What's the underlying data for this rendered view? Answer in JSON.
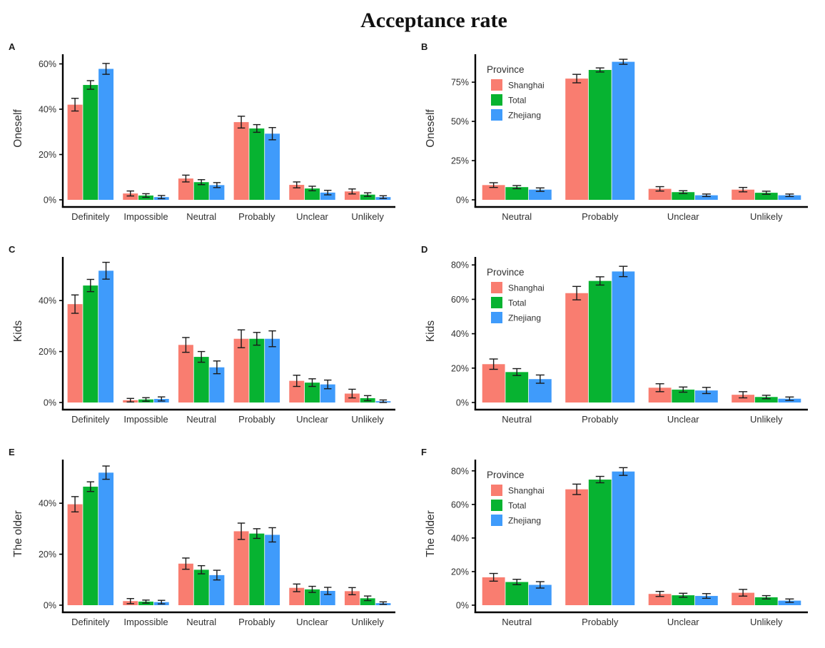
{
  "title": "Acceptance rate",
  "legend": {
    "title": "Province",
    "entries": [
      {
        "label": "Shanghai",
        "color": "#F97D70"
      },
      {
        "label": "Total",
        "color": "#07B331"
      },
      {
        "label": "Zhejiang",
        "color": "#3F9BFB"
      }
    ]
  },
  "axis_style": {
    "line_color": "#000000",
    "text_color": "#303030",
    "errorbar_color": "#1a1a1a"
  },
  "chart_data": [
    {
      "panel": "A",
      "type": "bar",
      "ylabel": "Oneself",
      "categories": [
        "Definitely",
        "Impossible",
        "Neutral",
        "Probably",
        "Unclear",
        "Unlikely"
      ],
      "ymax": 63,
      "yticks": [
        0,
        20,
        40,
        60
      ],
      "ytick_suffix": "%",
      "grid": false,
      "show_legend": false,
      "series": [
        {
          "name": "Shanghai",
          "values": [
            42.0,
            2.8,
            9.4,
            34.3,
            6.6,
            3.7
          ],
          "errors": [
            2.8,
            1.1,
            1.5,
            2.6,
            1.3,
            1.1
          ]
        },
        {
          "name": "Total",
          "values": [
            50.7,
            1.9,
            7.8,
            31.5,
            5.0,
            2.3
          ],
          "errors": [
            1.9,
            0.8,
            1.1,
            1.7,
            1.0,
            0.8
          ]
        },
        {
          "name": "Zhejiang",
          "values": [
            57.8,
            1.2,
            6.5,
            29.2,
            3.2,
            1.2
          ],
          "errors": [
            2.4,
            0.7,
            1.1,
            2.7,
            1.0,
            0.6
          ]
        }
      ]
    },
    {
      "panel": "B",
      "type": "bar",
      "ylabel": "Oneself",
      "categories": [
        "Neutral",
        "Probably",
        "Unclear",
        "Unlikely"
      ],
      "ymax": 91,
      "yticks": [
        0,
        25,
        50,
        75
      ],
      "ytick_suffix": "%",
      "grid": false,
      "show_legend": true,
      "series": [
        {
          "name": "Shanghai",
          "values": [
            9.4,
            77.3,
            7.0,
            6.5
          ],
          "errors": [
            1.5,
            2.7,
            1.4,
            1.4
          ]
        },
        {
          "name": "Total",
          "values": [
            8.1,
            82.8,
            4.9,
            4.5
          ],
          "errors": [
            1.0,
            1.3,
            0.9,
            1.0
          ]
        },
        {
          "name": "Zhejiang",
          "values": [
            6.5,
            88.0,
            2.9,
            2.9
          ],
          "errors": [
            1.1,
            1.6,
            0.8,
            0.8
          ]
        }
      ]
    },
    {
      "panel": "C",
      "type": "bar",
      "ylabel": "Kids",
      "categories": [
        "Definitely",
        "Impossible",
        "Neutral",
        "Probably",
        "Unclear",
        "Unlikely"
      ],
      "ymax": 56,
      "yticks": [
        0,
        20,
        40
      ],
      "ytick_suffix": "%",
      "grid": false,
      "show_legend": false,
      "series": [
        {
          "name": "Shanghai",
          "values": [
            38.6,
            0.9,
            22.6,
            25.0,
            8.5,
            3.5
          ],
          "errors": [
            3.6,
            0.7,
            2.9,
            3.5,
            2.2,
            1.7
          ]
        },
        {
          "name": "Total",
          "values": [
            45.9,
            1.2,
            17.9,
            25.0,
            7.8,
            1.7
          ],
          "errors": [
            2.4,
            0.7,
            2.1,
            2.5,
            1.5,
            1.0
          ]
        },
        {
          "name": "Zhejiang",
          "values": [
            51.7,
            1.4,
            13.8,
            25.0,
            7.1,
            0.5
          ],
          "errors": [
            3.3,
            0.8,
            2.5,
            3.1,
            1.7,
            0.5
          ]
        }
      ]
    },
    {
      "panel": "D",
      "type": "bar",
      "ylabel": "Kids",
      "categories": [
        "Neutral",
        "Probably",
        "Unclear",
        "Unlikely"
      ],
      "ymax": 83,
      "yticks": [
        0,
        20,
        40,
        60,
        80
      ],
      "ytick_suffix": "%",
      "grid": false,
      "show_legend": true,
      "series": [
        {
          "name": "Shanghai",
          "values": [
            22.3,
            63.6,
            8.6,
            4.5
          ],
          "errors": [
            3.0,
            3.9,
            2.3,
            1.8
          ]
        },
        {
          "name": "Total",
          "values": [
            17.7,
            70.7,
            7.5,
            3.2
          ],
          "errors": [
            2.0,
            2.4,
            1.5,
            1.0
          ]
        },
        {
          "name": "Zhejiang",
          "values": [
            13.6,
            76.2,
            7.0,
            2.2
          ],
          "errors": [
            2.4,
            3.0,
            1.8,
            1.0
          ]
        }
      ]
    },
    {
      "panel": "E",
      "type": "bar",
      "ylabel": "The older",
      "categories": [
        "Definitely",
        "Impossible",
        "Neutral",
        "Probably",
        "Unclear",
        "Unlikely"
      ],
      "ymax": 56,
      "yticks": [
        0,
        20,
        40
      ],
      "ytick_suffix": "%",
      "grid": false,
      "show_legend": false,
      "series": [
        {
          "name": "Shanghai",
          "values": [
            39.6,
            1.6,
            16.3,
            29.0,
            6.8,
            5.5
          ],
          "errors": [
            3.0,
            1.0,
            2.2,
            3.2,
            1.5,
            1.4
          ]
        },
        {
          "name": "Total",
          "values": [
            46.5,
            1.4,
            13.9,
            28.1,
            6.2,
            2.7
          ],
          "errors": [
            1.9,
            0.6,
            1.6,
            1.9,
            1.2,
            0.9
          ]
        },
        {
          "name": "Zhejiang",
          "values": [
            52.0,
            1.2,
            11.8,
            27.6,
            5.6,
            0.8
          ],
          "errors": [
            2.6,
            0.7,
            1.9,
            2.8,
            1.4,
            0.5
          ]
        }
      ]
    },
    {
      "panel": "F",
      "type": "bar",
      "ylabel": "The older",
      "categories": [
        "Neutral",
        "Probably",
        "Unclear",
        "Unlikely"
      ],
      "ymax": 85,
      "yticks": [
        0,
        20,
        40,
        60,
        80
      ],
      "ytick_suffix": "%",
      "grid": false,
      "show_legend": true,
      "series": [
        {
          "name": "Shanghai",
          "values": [
            16.6,
            69.0,
            6.7,
            7.4
          ],
          "errors": [
            2.3,
            3.1,
            1.5,
            2.0
          ]
        },
        {
          "name": "Total",
          "values": [
            13.8,
            74.8,
            5.9,
            4.7
          ],
          "errors": [
            1.6,
            1.9,
            1.2,
            1.0
          ]
        },
        {
          "name": "Zhejiang",
          "values": [
            12.1,
            79.6,
            5.5,
            2.7
          ],
          "errors": [
            1.9,
            2.3,
            1.4,
            1.0
          ]
        }
      ]
    }
  ]
}
